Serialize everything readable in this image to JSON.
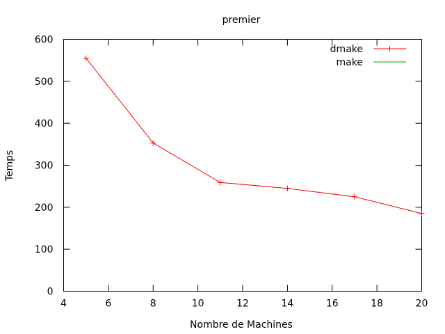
{
  "chart_data": {
    "type": "line",
    "title": "premier",
    "xlabel": "Nombre de Machines",
    "ylabel": "Temps",
    "xlim": [
      4,
      20
    ],
    "ylim": [
      0,
      600
    ],
    "xticks": [
      4,
      6,
      8,
      10,
      12,
      14,
      16,
      18,
      20
    ],
    "yticks": [
      0,
      100,
      200,
      300,
      400,
      500,
      600
    ],
    "grid": false,
    "legend_position": "top-right",
    "series": [
      {
        "name": "dmake",
        "color": "#ff0000",
        "marker": "plus",
        "x": [
          5,
          8,
          11,
          14,
          17,
          20
        ],
        "y": [
          555,
          353,
          259,
          245,
          225,
          185
        ]
      },
      {
        "name": "make",
        "color": "#00a000",
        "marker": "none",
        "x": [],
        "y": []
      }
    ]
  }
}
